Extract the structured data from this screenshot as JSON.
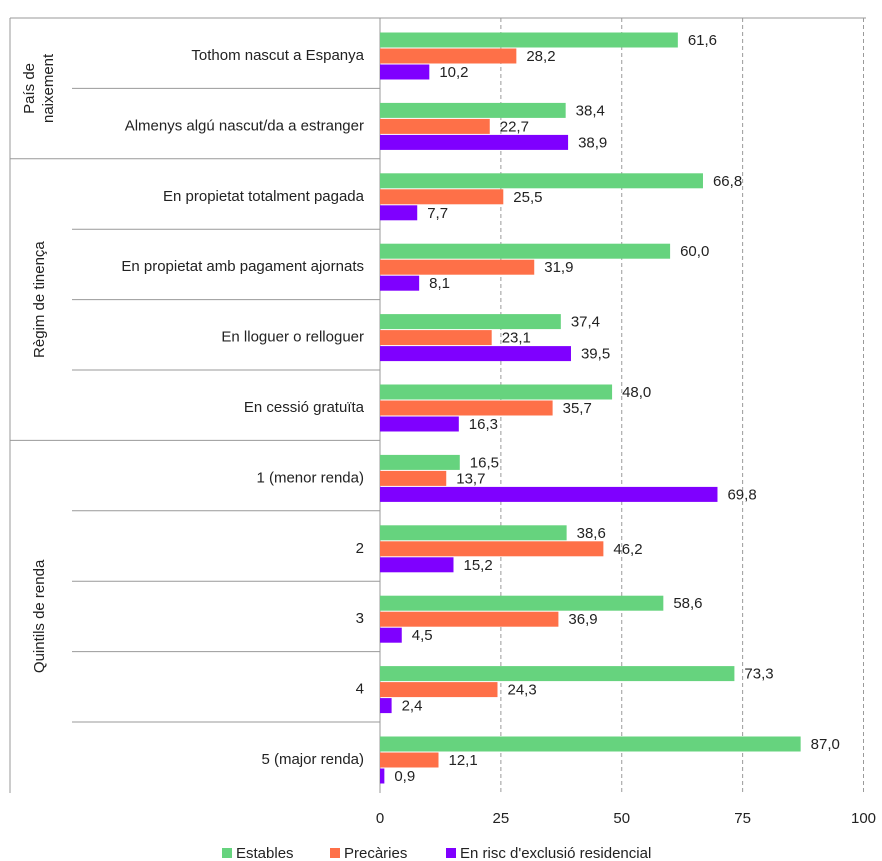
{
  "chart_data": {
    "type": "bar",
    "orientation": "horizontal",
    "xlim": [
      0,
      100
    ],
    "x_ticks": [
      "0",
      "25",
      "50",
      "75",
      "100"
    ],
    "grid": "vertical-dashed",
    "legend_position": "bottom",
    "groups": [
      {
        "label_lines": [
          "País de",
          "naixement"
        ],
        "categories": [
          "Tothom nascut a Espanya",
          "Almenys algú nascut/da a estranger"
        ]
      },
      {
        "label_lines": [
          "Règim de tinença"
        ],
        "categories": [
          "En propietat totalment pagada",
          "En propietat amb pagament ajornats",
          "En lloguer o relloguer",
          "En cessió gratuïta"
        ]
      },
      {
        "label_lines": [
          "Quintils de renda"
        ],
        "categories": [
          "1 (menor renda)",
          "2",
          "3",
          "4",
          "5 (major renda)"
        ]
      }
    ],
    "series": [
      {
        "name": "Estables",
        "color": "#66d37e",
        "values": [
          61.6,
          38.4,
          66.8,
          60.0,
          37.4,
          48.0,
          16.5,
          38.6,
          58.6,
          73.3,
          87.0
        ],
        "labels": [
          "61,6",
          "38,4",
          "66,8",
          "60,0",
          "37,4",
          "48,0",
          "16,5",
          "38,6",
          "58,6",
          "73,3",
          "87,0"
        ]
      },
      {
        "name": "Precàries",
        "color": "#fe7048",
        "values": [
          28.2,
          22.7,
          25.5,
          31.9,
          23.1,
          35.7,
          13.7,
          46.2,
          36.9,
          24.3,
          12.1
        ],
        "labels": [
          "28,2",
          "22,7",
          "25,5",
          "31,9",
          "23,1",
          "35,7",
          "13,7",
          "46,2",
          "36,9",
          "24,3",
          "12,1"
        ]
      },
      {
        "name": "En risc d'exclusió residencial",
        "color": "#7f00ff",
        "values": [
          10.2,
          38.9,
          7.7,
          8.1,
          39.5,
          16.3,
          69.8,
          15.2,
          4.5,
          2.4,
          0.9
        ],
        "labels": [
          "10,2",
          "38,9",
          "7,7",
          "8,1",
          "39,5",
          "16,3",
          "69,8",
          "15,2",
          "4,5",
          "2,4",
          "0,9"
        ]
      }
    ]
  }
}
